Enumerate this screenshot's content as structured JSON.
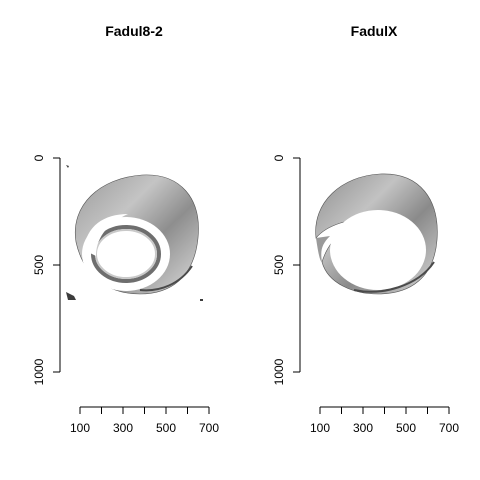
{
  "chart_data": [
    {
      "type": "image",
      "title": "Fadul8-2",
      "x_ticks": [
        100,
        300,
        500,
        700
      ],
      "x_minor_ticks": [
        100,
        200,
        300,
        400,
        500,
        600,
        700
      ],
      "y_ticks": [
        0,
        500,
        1000
      ],
      "x_range": [
        100,
        700
      ],
      "y_range": [
        0,
        1000
      ],
      "y_reversed": true,
      "grid": false,
      "fill_colors": [
        "#3c3c3c",
        "#7d7d7d",
        "#b4b4b4",
        "#dadada"
      ]
    },
    {
      "type": "image",
      "title": "FadulX",
      "x_ticks": [
        100,
        300,
        500,
        700
      ],
      "x_minor_ticks": [
        100,
        200,
        300,
        400,
        500,
        600,
        700
      ],
      "y_ticks": [
        0,
        500,
        1000
      ],
      "x_range": [
        100,
        700
      ],
      "y_range": [
        0,
        1000
      ],
      "y_reversed": true,
      "grid": false,
      "fill_colors": [
        "#3c3c3c",
        "#7d7d7d",
        "#b4b4b4",
        "#dadada"
      ]
    }
  ]
}
